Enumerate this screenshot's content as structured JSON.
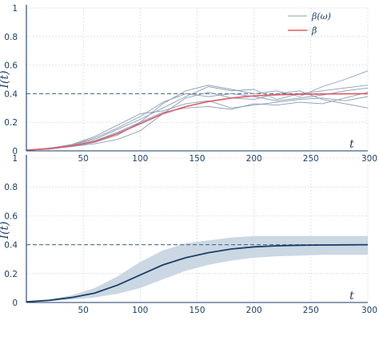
{
  "chart_data": [
    {
      "type": "line",
      "xlabel": "t",
      "ylabel": "I(t)",
      "xlim": [
        0,
        300
      ],
      "ylim": [
        0,
        1
      ],
      "xticks": [
        50,
        100,
        150,
        200,
        250,
        300
      ],
      "yticks": [
        0,
        0.2,
        0.4,
        0.6,
        0.8,
        1
      ],
      "x_tick_labels": [
        "50",
        "100",
        "150",
        "200",
        "250",
        "300"
      ],
      "y_tick_labels": [
        "0",
        "0.2",
        "0.4",
        "0.6",
        "0.8",
        "1"
      ],
      "grid": true,
      "reference_line": {
        "y": 0.4,
        "style": "dashed"
      },
      "legend": {
        "placement": "top-right",
        "entries": [
          {
            "label": "β(ω)",
            "color": "#8b9db3"
          },
          {
            "label": "β̄",
            "color": "#e05a67"
          }
        ]
      },
      "x": [
        0,
        20,
        40,
        60,
        80,
        100,
        120,
        140,
        160,
        180,
        200,
        220,
        240,
        260,
        280,
        300
      ],
      "series": [
        {
          "name": "β̄",
          "color": "#e05a67",
          "values": [
            0.005,
            0.015,
            0.035,
            0.065,
            0.12,
            0.19,
            0.26,
            0.31,
            0.345,
            0.37,
            0.385,
            0.392,
            0.396,
            0.398,
            0.399,
            0.4
          ]
        },
        {
          "color": "#8b9db3",
          "values": [
            0.005,
            0.02,
            0.04,
            0.08,
            0.15,
            0.22,
            0.3,
            0.38,
            0.45,
            0.42,
            0.43,
            0.36,
            0.4,
            0.42,
            0.44,
            0.46
          ]
        },
        {
          "color": "#8b9db3",
          "values": [
            0.005,
            0.012,
            0.03,
            0.06,
            0.11,
            0.2,
            0.33,
            0.42,
            0.46,
            0.43,
            0.4,
            0.42,
            0.38,
            0.45,
            0.5,
            0.56
          ]
        },
        {
          "color": "#8b9db3",
          "values": [
            0.005,
            0.018,
            0.045,
            0.1,
            0.18,
            0.26,
            0.28,
            0.33,
            0.35,
            0.3,
            0.32,
            0.34,
            0.36,
            0.37,
            0.35,
            0.38
          ]
        },
        {
          "color": "#8b9db3",
          "values": [
            0.005,
            0.015,
            0.03,
            0.05,
            0.08,
            0.14,
            0.26,
            0.37,
            0.41,
            0.37,
            0.36,
            0.4,
            0.42,
            0.36,
            0.33,
            0.3
          ]
        },
        {
          "color": "#8b9db3",
          "values": [
            0.005,
            0.014,
            0.035,
            0.07,
            0.13,
            0.2,
            0.27,
            0.3,
            0.31,
            0.29,
            0.33,
            0.32,
            0.34,
            0.33,
            0.37,
            0.41
          ]
        },
        {
          "color": "#8b9db3",
          "values": [
            0.005,
            0.016,
            0.04,
            0.09,
            0.16,
            0.24,
            0.34,
            0.4,
            0.38,
            0.4,
            0.38,
            0.35,
            0.37,
            0.39,
            0.42,
            0.44
          ]
        }
      ]
    },
    {
      "type": "area",
      "xlabel": "t",
      "ylabel": "I(t)",
      "xlim": [
        0,
        300
      ],
      "ylim": [
        0,
        1
      ],
      "xticks": [
        50,
        100,
        150,
        200,
        250,
        300
      ],
      "yticks": [
        0,
        0.2,
        0.4,
        0.6,
        0.8,
        1
      ],
      "x_tick_labels": [
        "50",
        "100",
        "150",
        "200",
        "250",
        "300"
      ],
      "y_tick_labels": [
        "0",
        "0.2",
        "0.4",
        "0.6",
        "0.8",
        "1"
      ],
      "grid": true,
      "reference_line": {
        "y": 0.4,
        "style": "dashed"
      },
      "x": [
        0,
        20,
        40,
        60,
        80,
        100,
        120,
        140,
        160,
        180,
        200,
        220,
        240,
        260,
        280,
        300
      ],
      "mean": [
        0.005,
        0.015,
        0.035,
        0.065,
        0.12,
        0.19,
        0.26,
        0.31,
        0.345,
        0.37,
        0.385,
        0.392,
        0.396,
        0.398,
        0.399,
        0.4
      ],
      "lower": [
        0.004,
        0.01,
        0.02,
        0.035,
        0.06,
        0.1,
        0.16,
        0.22,
        0.26,
        0.29,
        0.31,
        0.32,
        0.325,
        0.33,
        0.33,
        0.33
      ],
      "upper": [
        0.006,
        0.02,
        0.05,
        0.1,
        0.18,
        0.28,
        0.36,
        0.41,
        0.43,
        0.45,
        0.46,
        0.46,
        0.46,
        0.46,
        0.46,
        0.46
      ],
      "colors": {
        "mean": "#1a3e66",
        "band": "#c5d3e0"
      }
    }
  ]
}
